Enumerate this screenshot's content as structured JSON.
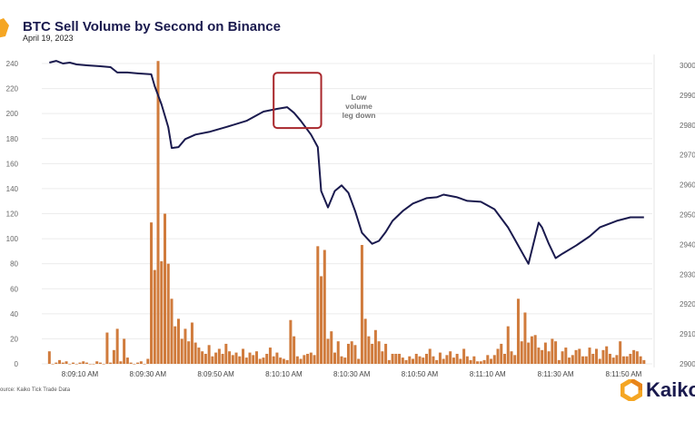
{
  "header": {
    "title": "BTC Sell Volume by Second on Binance",
    "subtitle": "April 19, 2023"
  },
  "source": "ource: Kaiko Tick Trade Data",
  "logo": {
    "text": "Kaiko",
    "icon": "kaiko-hexagon-logo-icon"
  },
  "colors": {
    "bars": "#d07b3c",
    "line": "#1a1a4e",
    "annotation_box": "#a8262b",
    "title": "#1a1a4e"
  },
  "chart_data": {
    "type": "bar+line",
    "title": "BTC Sell Volume by Second on Binance",
    "subtitle": "April 19, 2023",
    "grid": true,
    "y_left": {
      "range": [
        0,
        240
      ],
      "ticks": [
        "0",
        "20",
        "40",
        "60",
        "80",
        "100",
        "120",
        "140",
        "160",
        "180",
        "200",
        "220",
        "240"
      ]
    },
    "y_right": {
      "range": [
        29000,
        30000
      ],
      "ticks": [
        "29000",
        "29100",
        "29200",
        "29300",
        "29400",
        "29500",
        "29600",
        "29700",
        "29800",
        "29900",
        "30000"
      ]
    },
    "x_ticks": [
      "8:09:10 AM",
      "8:09:30 AM",
      "8:09:50 AM",
      "8:10:10 AM",
      "8:10:30 AM",
      "8:10:50 AM",
      "8:11:10 AM",
      "8:11:30 AM",
      "8:11:50 AM"
    ],
    "bars": {
      "start_time": "8:09:01 AM",
      "step_seconds": 1,
      "values": [
        10,
        0,
        1,
        3,
        1,
        2,
        0,
        1,
        0,
        1,
        2,
        1,
        0,
        0,
        2,
        1,
        0,
        25,
        1,
        11,
        28,
        2,
        20,
        5,
        1,
        0,
        1,
        2,
        0,
        4,
        113,
        75,
        242,
        82,
        120,
        80,
        52,
        30,
        36,
        20,
        28,
        18,
        33,
        17,
        13,
        10,
        8,
        15,
        6,
        9,
        12,
        8,
        16,
        10,
        7,
        9,
        6,
        12,
        5,
        9,
        7,
        10,
        4,
        5,
        8,
        13,
        6,
        9,
        5,
        4,
        3,
        35,
        22,
        6,
        4,
        7,
        8,
        9,
        7,
        94,
        70,
        91,
        20,
        26,
        9,
        18,
        6,
        5,
        16,
        18,
        15,
        4,
        95,
        36,
        22,
        16,
        27,
        18,
        10,
        16,
        3,
        8,
        8,
        8,
        5,
        3,
        6,
        4,
        8,
        6,
        5,
        8,
        12,
        6,
        3,
        9,
        4,
        7,
        10,
        5,
        8,
        4,
        12,
        6,
        3,
        6,
        2,
        2,
        3,
        7,
        4,
        7,
        12,
        16,
        8,
        30,
        10,
        7,
        52,
        18,
        41,
        17,
        22,
        23,
        13,
        11,
        17,
        10,
        20,
        18,
        3,
        10,
        13,
        5,
        7,
        11,
        12,
        6,
        6,
        13,
        8,
        12,
        4,
        11,
        14,
        8,
        5,
        7,
        18,
        6,
        6,
        8,
        11,
        10,
        6,
        3
      ]
    },
    "price_line": {
      "x": [
        "8:09:01",
        "8:09:03",
        "8:09:05",
        "8:09:07",
        "8:09:09",
        "8:09:12",
        "8:09:16",
        "8:09:19",
        "8:09:21",
        "8:09:24",
        "8:09:27",
        "8:09:31",
        "8:09:32",
        "8:09:34",
        "8:09:36",
        "8:09:37",
        "8:09:39",
        "8:09:41",
        "8:09:44",
        "8:09:48",
        "8:09:53",
        "8:09:59",
        "8:10:04",
        "8:10:08",
        "8:10:11",
        "8:10:13",
        "8:10:15",
        "8:10:18",
        "8:10:20",
        "8:10:21",
        "8:10:23",
        "8:10:25",
        "8:10:27",
        "8:10:29",
        "8:10:31",
        "8:10:33",
        "8:10:36",
        "8:10:38",
        "8:10:40",
        "8:10:42",
        "8:10:45",
        "8:10:48",
        "8:10:52",
        "8:10:55",
        "8:10:57",
        "8:11:01",
        "8:11:04",
        "8:11:08",
        "8:11:12",
        "8:11:16",
        "8:11:19",
        "8:11:22",
        "8:11:23",
        "8:11:25",
        "8:11:26",
        "8:11:28",
        "8:11:30",
        "8:11:32",
        "8:11:36",
        "8:11:40",
        "8:11:43",
        "8:11:48",
        "8:11:52",
        "8:11:56"
      ],
      "y": [
        30009,
        30015,
        30006,
        30009,
        30003,
        30000,
        29997,
        29994,
        29976,
        29976,
        29973,
        29970,
        29930,
        29869,
        29793,
        29723,
        29726,
        29753,
        29768,
        29777,
        29793,
        29814,
        29845,
        29854,
        29860,
        29841,
        29814,
        29768,
        29726,
        29579,
        29524,
        29579,
        29598,
        29573,
        29512,
        29439,
        29402,
        29412,
        29442,
        29479,
        29512,
        29537,
        29555,
        29558,
        29567,
        29558,
        29546,
        29543,
        29518,
        29457,
        29396,
        29335,
        29381,
        29473,
        29457,
        29402,
        29354,
        29369,
        29396,
        29427,
        29457,
        29479,
        29491,
        29491
      ]
    },
    "annotation": {
      "text_lines": [
        "Low",
        "volume",
        "leg down"
      ],
      "box_x_range": [
        "8:10:07",
        "8:10:21"
      ],
      "box_y_range": [
        29790,
        29975
      ]
    }
  }
}
